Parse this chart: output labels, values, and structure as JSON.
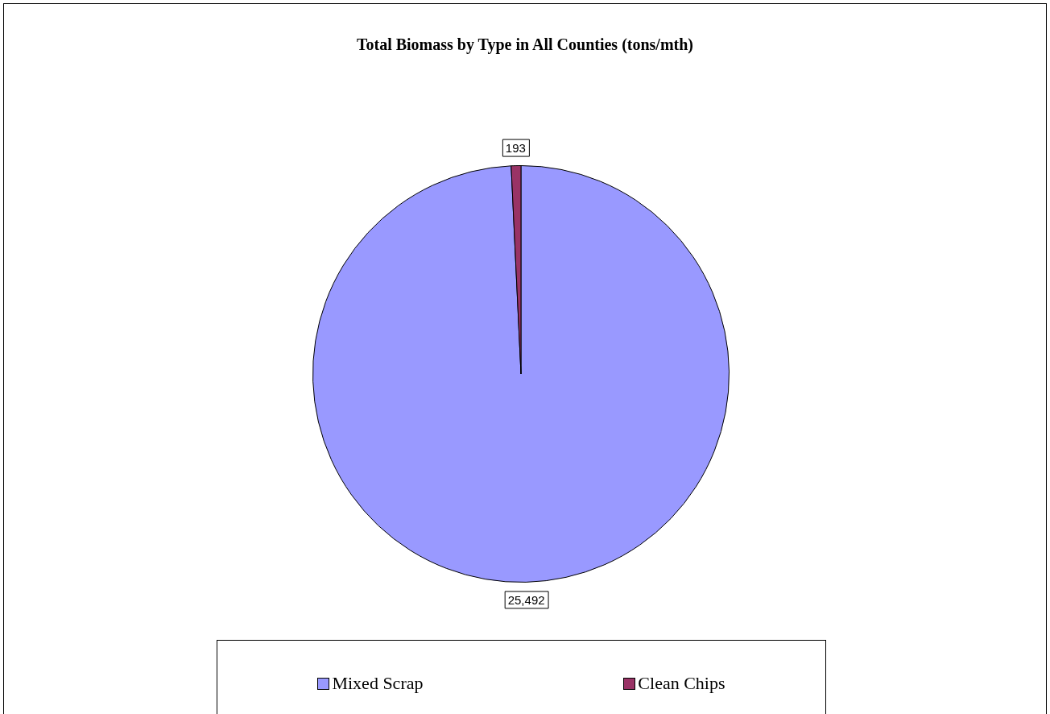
{
  "chart_data": {
    "type": "pie",
    "title": "Total Biomass by Type in All Counties (tons/mth)",
    "categories": [
      "Mixed Scrap",
      "Clean Chips"
    ],
    "values": [
      25492,
      193
    ],
    "colors": [
      "#9999ff",
      "#993366"
    ],
    "value_labels": [
      "25,492",
      "193"
    ],
    "legend": "bottom"
  }
}
